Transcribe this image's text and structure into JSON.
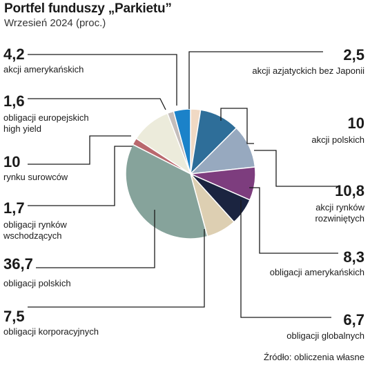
{
  "title": "Portfel funduszy „Parkietu”",
  "subtitle": "Wrzesień 2024 (proc.)",
  "source": "Źródło: obliczenia własne",
  "chart_data": {
    "type": "pie",
    "slices": [
      {
        "value": 2.5,
        "value_label": "2,5",
        "label": [
          "akcji azjatyckich bez Japonii"
        ],
        "color": "#f0d9c4"
      },
      {
        "value": 10,
        "value_label": "10",
        "label": [
          "akcji polskich"
        ],
        "color": "#2e6e99"
      },
      {
        "value": 10.8,
        "value_label": "10,8",
        "label": [
          "akcji rynków",
          "rozwiniętych"
        ],
        "color": "#97a9bf"
      },
      {
        "value": 8.3,
        "value_label": "8,3",
        "label": [
          "obligacji amerykańskich"
        ],
        "color": "#7d3d7e"
      },
      {
        "value": 6.7,
        "value_label": "6,7",
        "label": [
          "obligacji globalnych"
        ],
        "color": "#1b2440"
      },
      {
        "value": 7.5,
        "value_label": "7,5",
        "label": [
          "obligacji korporacyjnych"
        ],
        "color": "#ddcfb2"
      },
      {
        "value": 36.7,
        "value_label": "36,7",
        "label": [
          "obligacji polskich"
        ],
        "color": "#86a39b"
      },
      {
        "value": 1.7,
        "value_label": "1,7",
        "label": [
          "obligacji rynków",
          "wschodzących"
        ],
        "color": "#b9686d"
      },
      {
        "value": 10,
        "value_label": "10",
        "label": [
          "rynku surowców"
        ],
        "color": "#ecebdb"
      },
      {
        "value": 1.6,
        "value_label": "1,6",
        "label": [
          "obligacji europejskich",
          "high yield"
        ],
        "color": "#c4bdbb"
      },
      {
        "value": 4.2,
        "value_label": "4,2",
        "label": [
          "akcji amerykańskich"
        ],
        "color": "#1b82c9"
      }
    ]
  }
}
